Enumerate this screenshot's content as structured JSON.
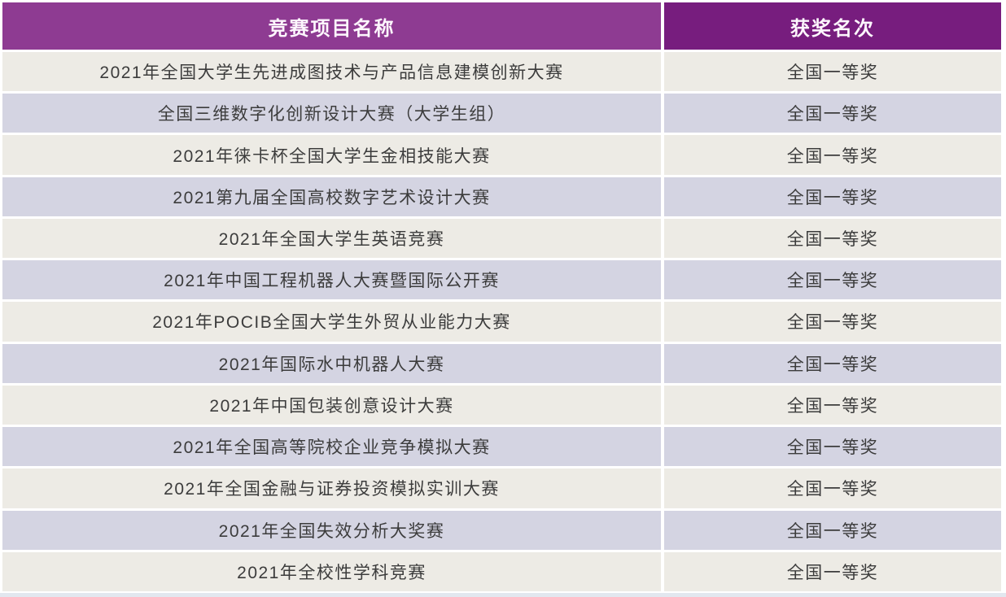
{
  "table": {
    "columns": [
      {
        "label": "竞赛项目名称"
      },
      {
        "label": "获奖名次"
      }
    ],
    "rows": [
      {
        "name": "2021年全国大学生先进成图技术与产品信息建模创新大赛",
        "award": "全国一等奖"
      },
      {
        "name": "全国三维数字化创新设计大赛（大学生组）",
        "award": "全国一等奖"
      },
      {
        "name": "2021年徕卡杯全国大学生金相技能大赛",
        "award": "全国一等奖"
      },
      {
        "name": "2021第九届全国高校数字艺术设计大赛",
        "award": "全国一等奖"
      },
      {
        "name": "2021年全国大学生英语竞赛",
        "award": "全国一等奖"
      },
      {
        "name": "2021年中国工程机器人大赛暨国际公开赛",
        "award": "全国一等奖"
      },
      {
        "name": "2021年POCIB全国大学生外贸从业能力大赛",
        "award": "全国一等奖"
      },
      {
        "name": "2021年国际水中机器人大赛",
        "award": "全国一等奖"
      },
      {
        "name": "2021年中国包装创意设计大赛",
        "award": "全国一等奖"
      },
      {
        "name": "2021年全国高等院校企业竞争模拟大赛",
        "award": "全国一等奖"
      },
      {
        "name": "2021年全国金融与证券投资模拟实训大赛",
        "award": "全国一等奖"
      },
      {
        "name": "2021年全国失效分析大奖赛",
        "award": "全国一等奖"
      },
      {
        "name": "2021年全校性学科竞赛",
        "award": "全国一等奖"
      }
    ],
    "colors": {
      "header_left_bg": "#8e3b92",
      "header_right_bg": "#771d7e",
      "header_text": "#fdf6fd",
      "row_odd_bg": "#edebe5",
      "row_even_bg": "#d4d4e2",
      "row_text": "#3c3c3c"
    }
  }
}
